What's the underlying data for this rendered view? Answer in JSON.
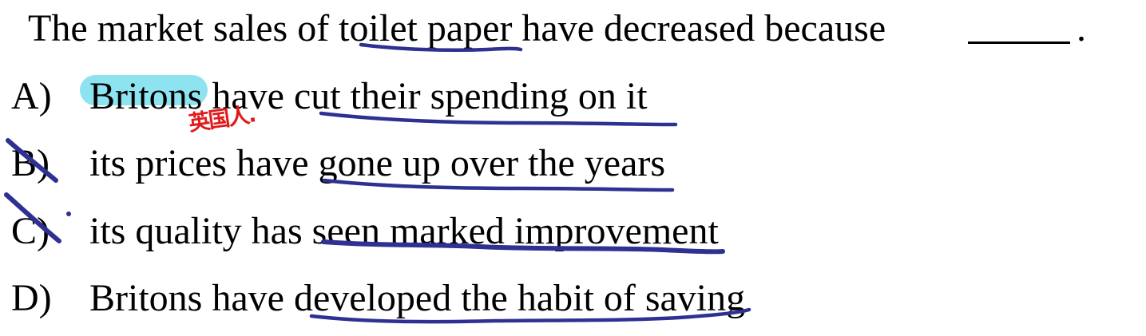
{
  "question": {
    "stem": "The market sales of toilet paper have decreased because",
    "end_punct": "."
  },
  "options": [
    {
      "letter": "A)",
      "text": "Britons have cut their spending on it"
    },
    {
      "letter": "B)",
      "text": "its prices have gone up over the years"
    },
    {
      "letter": "C)",
      "text": "its quality has seen marked improvement"
    },
    {
      "letter": "D)",
      "text": "Britons have developed the habit of saving"
    }
  ],
  "annotations": {
    "handwritten_note": "英国人.",
    "highlight_color": "#8ee3f0",
    "note_color": "#e01a1a",
    "pen_color": "#2e3192"
  }
}
